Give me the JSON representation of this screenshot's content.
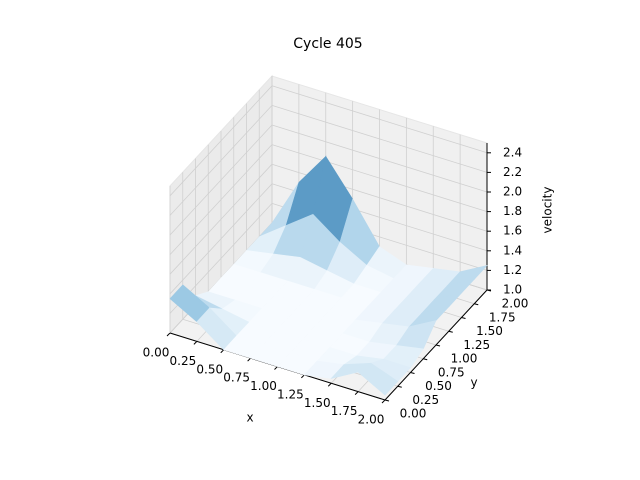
{
  "chart_data": {
    "type": "surface",
    "title": "Cycle 405",
    "xlabel": "x",
    "ylabel": "y",
    "zlabel": "velocity",
    "x": [
      0,
      0.25,
      0.5,
      0.75,
      1,
      1.25,
      1.5,
      1.75,
      2
    ],
    "y": [
      0,
      0.25,
      0.5,
      0.75,
      1,
      1.25,
      1.5,
      1.75,
      2
    ],
    "z": [
      [
        1.35,
        1.2,
        1.0,
        1.0,
        1.0,
        1.0,
        1.05,
        1.2,
        1.05
      ],
      [
        1.35,
        1.2,
        1.0,
        1.0,
        1.0,
        1.0,
        1.05,
        1.15,
        1.05
      ],
      [
        1.1,
        1.05,
        1.0,
        1.0,
        1.0,
        1.0,
        1.0,
        1.05,
        1.05
      ],
      [
        1.0,
        1.0,
        1.0,
        1.0,
        1.0,
        1.0,
        1.0,
        1.05,
        1.1
      ],
      [
        1.0,
        1.0,
        1.0,
        1.0,
        1.0,
        1.0,
        1.05,
        1.1,
        1.25
      ],
      [
        1.0,
        1.0,
        1.0,
        1.0,
        1.0,
        1.0,
        1.05,
        1.1,
        1.25
      ],
      [
        1.0,
        1.05,
        1.1,
        1.05,
        1.0,
        1.0,
        1.05,
        1.1,
        1.25
      ],
      [
        1.0,
        1.2,
        1.4,
        1.2,
        1.05,
        1.0,
        1.05,
        1.1,
        1.25
      ],
      [
        1.0,
        1.5,
        1.85,
        1.5,
        1.1,
        1.0,
        1.05,
        1.1,
        1.25
      ]
    ],
    "colormap": [
      "#f7fbff",
      "#6baed6",
      "#08306b"
    ],
    "xlim": [
      0,
      2
    ],
    "ylim": [
      0,
      2
    ],
    "zlim": [
      1.0,
      2.5
    ],
    "xticks": [
      {
        "value": 0,
        "label": "0.00"
      },
      {
        "value": 0.25,
        "label": "0.25"
      },
      {
        "value": 0.5,
        "label": "0.50"
      },
      {
        "value": 0.75,
        "label": "0.75"
      },
      {
        "value": 1,
        "label": "1.00"
      },
      {
        "value": 1.25,
        "label": "1.25"
      },
      {
        "value": 1.5,
        "label": "1.50"
      },
      {
        "value": 1.75,
        "label": "1.75"
      },
      {
        "value": 2,
        "label": "2.00"
      }
    ],
    "yticks": [
      {
        "value": 0,
        "label": "0.00"
      },
      {
        "value": 0.25,
        "label": "0.25"
      },
      {
        "value": 0.5,
        "label": "0.50"
      },
      {
        "value": 0.75,
        "label": "0.75"
      },
      {
        "value": 1,
        "label": "1.00"
      },
      {
        "value": 1.25,
        "label": "1.25"
      },
      {
        "value": 1.5,
        "label": "1.50"
      },
      {
        "value": 1.75,
        "label": "1.75"
      },
      {
        "value": 2,
        "label": "2.00"
      }
    ],
    "zticks": [
      {
        "value": 1.0,
        "label": "1.0"
      },
      {
        "value": 1.2,
        "label": "1.2"
      },
      {
        "value": 1.4,
        "label": "1.4"
      },
      {
        "value": 1.6,
        "label": "1.6"
      },
      {
        "value": 1.8,
        "label": "1.8"
      },
      {
        "value": 2.0,
        "label": "2.0"
      },
      {
        "value": 2.2,
        "label": "2.2"
      },
      {
        "value": 2.4,
        "label": "2.4"
      }
    ],
    "grid": true
  }
}
